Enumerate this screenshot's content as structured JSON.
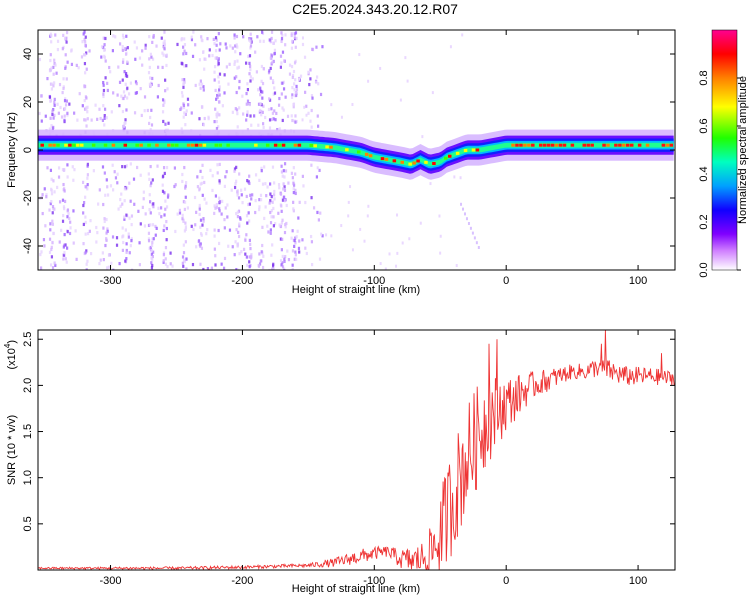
{
  "title": "C2E5.2024.343.20.12.R07",
  "chart_data": [
    {
      "type": "heatmap",
      "name": "spectrogram",
      "xlabel": "Height of straight line (km)",
      "ylabel": "Frequency (Hz)",
      "xlim": [
        -355,
        128
      ],
      "ylim": [
        -50,
        50
      ],
      "xticks": [
        -300,
        -200,
        -100,
        0,
        100
      ],
      "yticks": [
        -40,
        -20,
        0,
        20,
        40
      ],
      "colorbar": {
        "label": "Normalized spectral amplitude",
        "range": [
          0,
          1
        ],
        "ticks": [
          0.0,
          0.2,
          0.4,
          0.6,
          0.8
        ],
        "tick_labels": [
          "0.0",
          "0.2",
          "0.4",
          "0.6",
          "0.8"
        ],
        "colors": [
          "#ffffff",
          "#b000ff",
          "#2000ff",
          "#00b0ff",
          "#00ff90",
          "#40ff00",
          "#ffff00",
          "#ff8000",
          "#ff0000",
          "#ff00a0"
        ]
      },
      "ridge": {
        "x": [
          -355,
          -300,
          -250,
          -200,
          -170,
          -150,
          -130,
          -110,
          -100,
          -90,
          -80,
          -72,
          -65,
          -58,
          -50,
          -45,
          -40,
          -35,
          -30,
          -20,
          -10,
          0,
          20,
          50,
          80,
          110,
          128
        ],
        "y": [
          2,
          2,
          2,
          2,
          2,
          2,
          1,
          -1,
          -3,
          -4,
          -5,
          -6,
          -4,
          -6,
          -5,
          -3,
          -2,
          -1,
          0,
          0,
          1,
          2,
          2,
          2,
          2,
          2,
          2
        ]
      }
    },
    {
      "type": "line",
      "name": "snr",
      "xlabel": "Height of straight line (km)",
      "ylabel": "SNR (10 * v/v)",
      "multiplier_label": "(x10",
      "multiplier_exp": "4",
      "multiplier_close": ")",
      "xlim": [
        -355,
        128
      ],
      "ylim": [
        0,
        2.6
      ],
      "xticks": [
        -300,
        -200,
        -100,
        0,
        100
      ],
      "yticks": [
        0.5,
        1.0,
        1.5,
        2.0,
        2.5
      ],
      "ytick_labels": [
        "0.5",
        "1.0",
        "1.5",
        "2.0",
        "2.5"
      ],
      "color": "#ee3333",
      "trend": {
        "x": [
          -355,
          -250,
          -200,
          -150,
          -130,
          -110,
          -100,
          -90,
          -80,
          -70,
          -60,
          -55,
          -50,
          -45,
          -40,
          -35,
          -30,
          -25,
          -20,
          -15,
          -10,
          -5,
          0,
          10,
          20,
          30,
          40,
          50,
          60,
          70,
          80,
          90,
          100,
          110,
          120,
          128
        ],
        "y": [
          0.02,
          0.02,
          0.03,
          0.05,
          0.08,
          0.15,
          0.18,
          0.2,
          0.12,
          0.1,
          0.15,
          0.25,
          0.35,
          0.6,
          0.8,
          1.0,
          1.2,
          1.35,
          1.5,
          1.6,
          1.7,
          1.75,
          1.8,
          1.9,
          2.0,
          2.05,
          2.1,
          2.15,
          2.15,
          2.2,
          2.15,
          2.1,
          2.1,
          2.1,
          2.08,
          2.08
        ]
      },
      "noise_amplitude": {
        "x": [
          -355,
          -150,
          -110,
          -90,
          -60,
          -50,
          -40,
          -30,
          -20,
          -10,
          0,
          20,
          50,
          80,
          128
        ],
        "y": [
          0.01,
          0.02,
          0.08,
          0.06,
          0.2,
          0.5,
          0.6,
          0.6,
          0.55,
          0.45,
          0.3,
          0.15,
          0.08,
          0.12,
          0.08
        ]
      },
      "spikes": [
        {
          "x": -13,
          "y": 2.45
        },
        {
          "x": -7,
          "y": 2.5
        },
        {
          "x": 75,
          "y": 2.6
        },
        {
          "x": 72,
          "y": 2.45
        },
        {
          "x": 118,
          "y": 2.35
        }
      ]
    }
  ]
}
